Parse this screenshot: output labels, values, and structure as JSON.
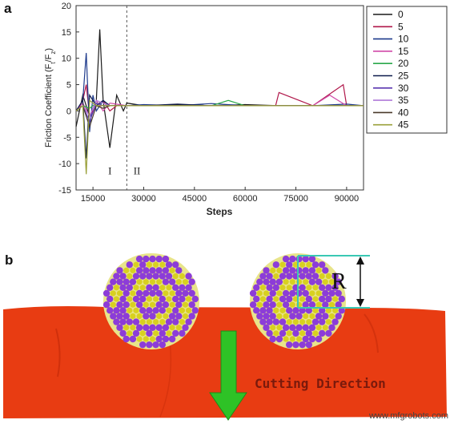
{
  "chart_data": {
    "type": "line",
    "panel_label": "a",
    "title": "",
    "xlabel": "Steps",
    "ylabel_main": "Friction Coefficient (F",
    "ylabel_sub1": "t",
    "ylabel_mid": "/F",
    "ylabel_sub2": "z",
    "ylabel_end": ")",
    "xlim": [
      10000,
      95000
    ],
    "ylim": [
      -15,
      20
    ],
    "x_ticks": [
      15000,
      30000,
      45000,
      60000,
      75000,
      90000
    ],
    "x_tick_labels": [
      "15000",
      "30000",
      "45000",
      "60000",
      "75000",
      "90000"
    ],
    "y_ticks": [
      -15,
      -10,
      -5,
      0,
      5,
      10,
      15,
      20
    ],
    "y_tick_labels": [
      "-15",
      "-10",
      "-5",
      "0",
      "5",
      "10",
      "15",
      "20"
    ],
    "divider_x": 25000,
    "regions": [
      {
        "label": "I",
        "x": 20000,
        "y": -12
      },
      {
        "label": "II",
        "x": 28000,
        "y": -12
      }
    ],
    "legend_position": "right",
    "series": [
      {
        "name": "0",
        "color": "#1a1a1a",
        "x": [
          10000,
          12000,
          14000,
          16000,
          17000,
          18000,
          20000,
          22000,
          24000,
          25000,
          30000,
          40000,
          50000,
          60000,
          70000,
          80000,
          90000,
          95000
        ],
        "values": [
          -3,
          3,
          -1,
          2,
          15.5,
          2,
          -7,
          3,
          0,
          1.5,
          1,
          1.2,
          1,
          1.2,
          1,
          1,
          1,
          1
        ]
      },
      {
        "name": "5",
        "color": "#b0174a",
        "x": [
          10000,
          12000,
          13000,
          14000,
          16000,
          18000,
          20000,
          22000,
          25000,
          30000,
          40000,
          50000,
          60000,
          69000,
          70000,
          80000,
          89000,
          90000,
          95000
        ],
        "values": [
          0,
          2,
          5,
          -1,
          1,
          2,
          0,
          1,
          1,
          1,
          1,
          1,
          1,
          1,
          3.5,
          1,
          5,
          1,
          1
        ]
      },
      {
        "name": "10",
        "color": "#1e3a8c",
        "x": [
          10000,
          12000,
          13000,
          14000,
          15000,
          16000,
          18000,
          20000,
          25000,
          30000,
          40000,
          50000,
          60000,
          70000,
          80000,
          90000,
          95000
        ],
        "values": [
          0,
          2,
          11,
          -4,
          3,
          0,
          2,
          1,
          1,
          1.2,
          1,
          1.4,
          1,
          1,
          1,
          1.3,
          1
        ]
      },
      {
        "name": "15",
        "color": "#d04aa8",
        "x": [
          10000,
          12000,
          14000,
          16000,
          18000,
          20000,
          25000,
          30000,
          40000,
          50000,
          60000,
          70000,
          80000,
          85000,
          90000,
          95000
        ],
        "values": [
          0,
          1.5,
          -1,
          2,
          0,
          1.5,
          1,
          1,
          1,
          1,
          1,
          1,
          1,
          3,
          1,
          1
        ]
      },
      {
        "name": "20",
        "color": "#2aa84a",
        "x": [
          10000,
          12000,
          14000,
          16000,
          18000,
          20000,
          25000,
          30000,
          40000,
          50000,
          55000,
          60000,
          70000,
          80000,
          90000,
          95000
        ],
        "values": [
          0,
          1,
          0.5,
          1.5,
          1,
          1,
          1,
          1,
          1,
          1,
          2,
          1,
          1,
          1,
          1,
          1
        ]
      },
      {
        "name": "25",
        "color": "#0e1b4d",
        "x": [
          10000,
          12000,
          13000,
          14000,
          16000,
          18000,
          20000,
          25000,
          30000,
          40000,
          50000,
          60000,
          70000,
          80000,
          90000,
          95000
        ],
        "values": [
          0,
          2,
          -9,
          3,
          1,
          2,
          1,
          1,
          1,
          1.3,
          1,
          1,
          1,
          1,
          1,
          1
        ]
      },
      {
        "name": "30",
        "color": "#5a36b0",
        "x": [
          10000,
          12000,
          14000,
          16000,
          18000,
          20000,
          25000,
          30000,
          40000,
          50000,
          60000,
          70000,
          80000,
          90000,
          95000
        ],
        "values": [
          0,
          1,
          -2,
          1.5,
          1,
          1,
          1,
          1,
          1,
          1,
          1,
          1,
          1,
          1,
          1
        ]
      },
      {
        "name": "35",
        "color": "#b07ad8",
        "x": [
          10000,
          12000,
          14000,
          16000,
          18000,
          20000,
          25000,
          30000,
          40000,
          50000,
          60000,
          70000,
          80000,
          90000,
          95000
        ],
        "values": [
          0,
          1,
          -1,
          2,
          1.5,
          1,
          1,
          1,
          1,
          1,
          1,
          1,
          1,
          1,
          1
        ]
      },
      {
        "name": "40",
        "color": "#4a3a2a",
        "x": [
          10000,
          12000,
          14000,
          16000,
          18000,
          20000,
          25000,
          30000,
          40000,
          50000,
          60000,
          70000,
          80000,
          90000,
          95000
        ],
        "values": [
          0,
          1,
          -3,
          1,
          0.5,
          1,
          1,
          1,
          1,
          1,
          1,
          1,
          1,
          1,
          1
        ]
      },
      {
        "name": "45",
        "color": "#9aa03a",
        "x": [
          10000,
          12000,
          13000,
          14000,
          16000,
          18000,
          20000,
          25000,
          30000,
          40000,
          50000,
          60000,
          70000,
          80000,
          90000,
          95000
        ],
        "values": [
          0,
          1,
          -12,
          2,
          1,
          1,
          1,
          1,
          1,
          1,
          1,
          1,
          1,
          1,
          1,
          1
        ]
      }
    ]
  },
  "panel_b": {
    "panel_label": "b",
    "label_R": "R",
    "cutting_label": "Cutting Direction",
    "colors": {
      "workpiece": "#e83c12",
      "arrow": "#2ec226",
      "atom_yellow": "#d8d020",
      "atom_purple": "#8c3cd8",
      "bracket": "#3ac8b4"
    }
  },
  "watermark": "www.mfgrobots.com"
}
